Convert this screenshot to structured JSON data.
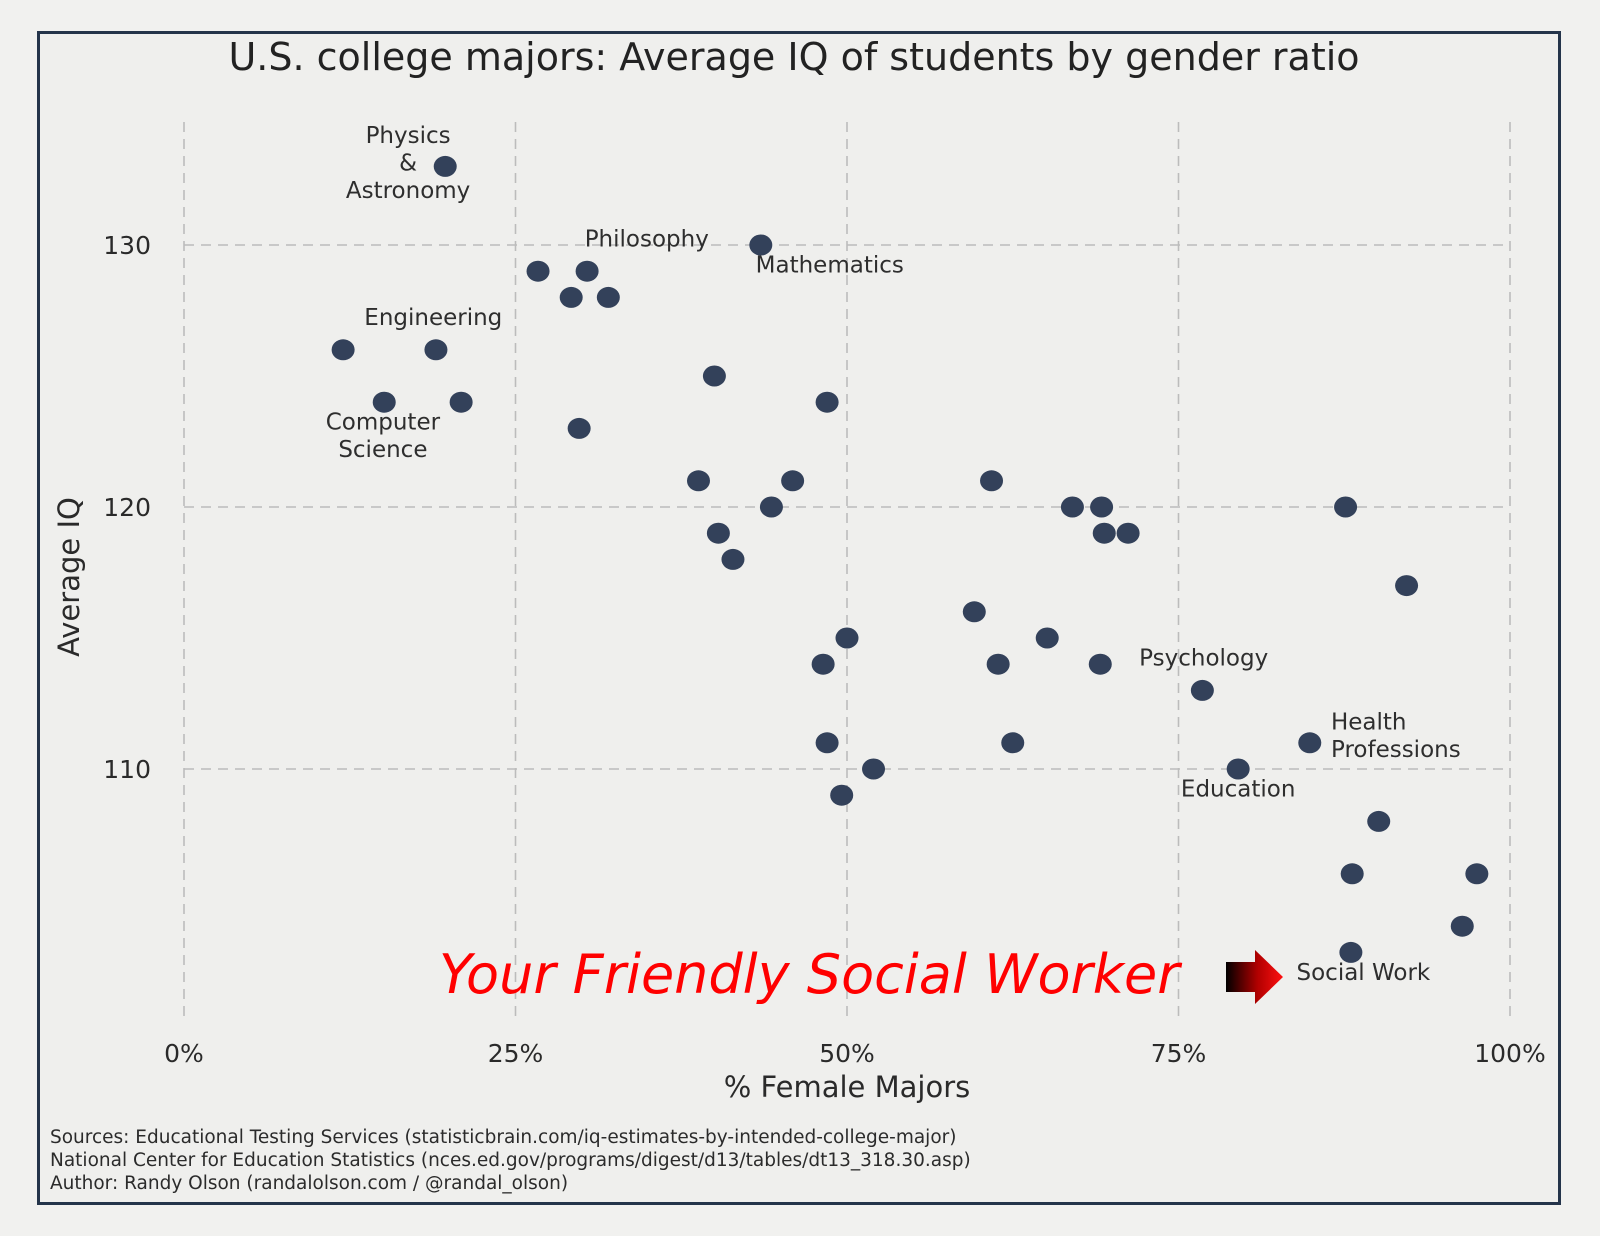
{
  "chart_data": {
    "type": "scatter",
    "title": "U.S. college majors: Average IQ of students by gender ratio",
    "xlabel": "% Female Majors",
    "ylabel": "Average IQ",
    "xlim": [
      0,
      100
    ],
    "ylim": [
      100,
      135
    ],
    "x_ticks": [
      0,
      25,
      50,
      75,
      100
    ],
    "x_tick_labels": [
      "0%",
      "25%",
      "50%",
      "75%",
      "100%"
    ],
    "y_ticks": [
      110,
      120,
      130
    ],
    "y_tick_labels": [
      "110",
      "120",
      "130"
    ],
    "grid": true,
    "points": [
      {
        "x": 19.7,
        "y": 133
      },
      {
        "x": 43.5,
        "y": 130
      },
      {
        "x": 26.7,
        "y": 129
      },
      {
        "x": 30.4,
        "y": 129
      },
      {
        "x": 29.2,
        "y": 128
      },
      {
        "x": 32.0,
        "y": 128
      },
      {
        "x": 12.0,
        "y": 126
      },
      {
        "x": 19.0,
        "y": 126
      },
      {
        "x": 15.1,
        "y": 124
      },
      {
        "x": 20.9,
        "y": 124
      },
      {
        "x": 40.0,
        "y": 125
      },
      {
        "x": 48.5,
        "y": 124
      },
      {
        "x": 29.8,
        "y": 123
      },
      {
        "x": 38.8,
        "y": 121
      },
      {
        "x": 45.9,
        "y": 121
      },
      {
        "x": 60.9,
        "y": 121
      },
      {
        "x": 44.3,
        "y": 120
      },
      {
        "x": 67.0,
        "y": 120
      },
      {
        "x": 69.2,
        "y": 120
      },
      {
        "x": 87.6,
        "y": 120
      },
      {
        "x": 40.3,
        "y": 119
      },
      {
        "x": 69.4,
        "y": 119
      },
      {
        "x": 71.2,
        "y": 119
      },
      {
        "x": 41.4,
        "y": 118
      },
      {
        "x": 92.2,
        "y": 117
      },
      {
        "x": 59.6,
        "y": 116
      },
      {
        "x": 50.0,
        "y": 115
      },
      {
        "x": 65.1,
        "y": 115
      },
      {
        "x": 48.2,
        "y": 114
      },
      {
        "x": 61.4,
        "y": 114
      },
      {
        "x": 69.1,
        "y": 114
      },
      {
        "x": 76.8,
        "y": 113
      },
      {
        "x": 48.5,
        "y": 111
      },
      {
        "x": 62.5,
        "y": 111
      },
      {
        "x": 84.9,
        "y": 111
      },
      {
        "x": 52.0,
        "y": 110
      },
      {
        "x": 79.5,
        "y": 110
      },
      {
        "x": 49.6,
        "y": 109
      },
      {
        "x": 90.1,
        "y": 108
      },
      {
        "x": 88.1,
        "y": 106
      },
      {
        "x": 97.5,
        "y": 106
      },
      {
        "x": 96.4,
        "y": 104
      },
      {
        "x": 88.0,
        "y": 103
      }
    ],
    "annotations": [
      {
        "lines": [
          "Physics",
          "&",
          "Astronomy"
        ],
        "x": 16.9,
        "y": 133.9,
        "anchor": "middle"
      },
      {
        "lines": [
          "Philosophy"
        ],
        "x": 34.9,
        "y": 129.95,
        "anchor": "middle"
      },
      {
        "lines": [
          "Mathematics"
        ],
        "x": 48.7,
        "y": 128.95,
        "anchor": "middle"
      },
      {
        "lines": [
          "Engineering"
        ],
        "x": 18.8,
        "y": 126.95,
        "anchor": "middle"
      },
      {
        "lines": [
          "Computer",
          "Science"
        ],
        "x": 15.0,
        "y": 122.95,
        "anchor": "middle"
      },
      {
        "lines": [
          "Psychology"
        ],
        "x": 76.9,
        "y": 113.95,
        "anchor": "middle"
      },
      {
        "lines": [
          "Health",
          "Professions"
        ],
        "x": 86.5,
        "y": 111.5,
        "anchor": "start"
      },
      {
        "lines": [
          "Education"
        ],
        "x": 79.5,
        "y": 108.95,
        "anchor": "middle"
      },
      {
        "lines": [
          "Social Work"
        ],
        "x": 83.9,
        "y": 101.95,
        "anchor": "start"
      }
    ],
    "callout": {
      "text": "Your Friendly Social Worker",
      "color": "#ff0000",
      "arrow": "right-arrow"
    }
  },
  "sources": [
    "Sources: Educational Testing Services (statisticbrain.com/iq-estimates-by-intended-college-major)",
    "National Center for Education Statistics (nces.ed.gov/programs/digest/d13/tables/dt13_318.30.asp)",
    "Author: Randy Olson (randalolson.com / @randal_olson)"
  ]
}
